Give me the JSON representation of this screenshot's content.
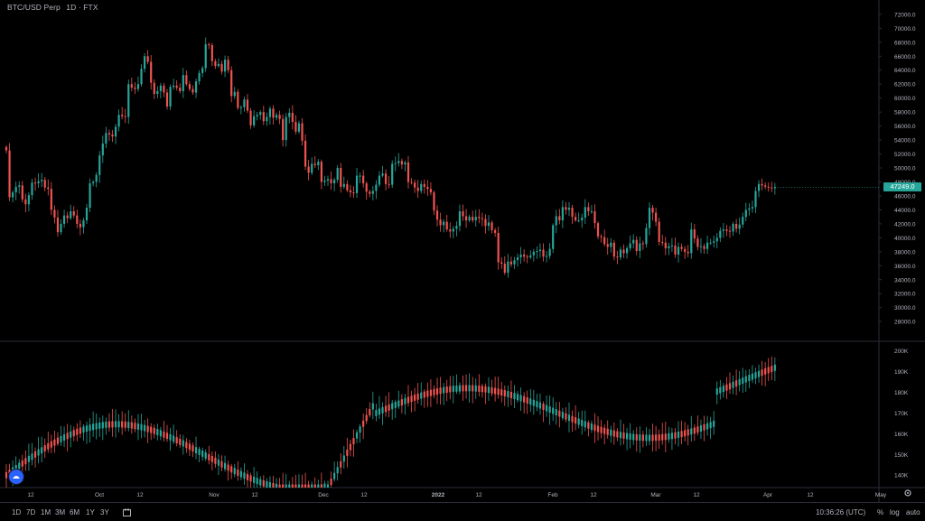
{
  "header": {
    "symbol": "BTC/USD Perp",
    "interval": "1D",
    "exchange": "FTX"
  },
  "colors": {
    "up": "#26a69a",
    "down": "#ef5350",
    "background": "#000000",
    "grid": "#1e222d",
    "axis_text": "#b2b5be"
  },
  "last_price_label": "47249.0",
  "bottom_bar": {
    "ranges": [
      "1D",
      "7D",
      "1M",
      "3M",
      "6M",
      "1Y",
      "3Y"
    ],
    "time": "10:36:26 (UTC)",
    "percent": "%",
    "log": "log",
    "auto": "auto"
  },
  "chart_data": [
    {
      "type": "candlestick",
      "title": "BTC/USD Perp · 1D · FTX",
      "y_ticks": [
        "72000.0",
        "70000.0",
        "68000.0",
        "66000.0",
        "64000.0",
        "62000.0",
        "60000.0",
        "58000.0",
        "56000.0",
        "54000.0",
        "52000.0",
        "50000.0",
        "48000.0",
        "46000.0",
        "44000.0",
        "42000.0",
        "40000.0",
        "38000.0",
        "36000.0",
        "34000.0",
        "32000.0",
        "30000.0",
        "28000.0"
      ],
      "ylim": [
        26600,
        72500
      ],
      "x_ticks": [
        "12",
        "Oct",
        "12",
        "Nov",
        "12",
        "Dec",
        "12",
        "2022",
        "12",
        "Feb",
        "12",
        "Mar",
        "12",
        "Apr",
        "12",
        "May"
      ],
      "closes": [
        52500,
        45800,
        46500,
        47300,
        47500,
        45500,
        44800,
        46100,
        47900,
        47800,
        48100,
        48300,
        47200,
        47000,
        44000,
        42900,
        40800,
        42000,
        43200,
        42800,
        43800,
        43200,
        42000,
        41500,
        42500,
        44300,
        47800,
        48000,
        49000,
        51800,
        53500,
        55000,
        54800,
        54500,
        55900,
        57600,
        57400,
        57300,
        62000,
        61500,
        61300,
        62000,
        64200,
        66000,
        65200,
        62200,
        60600,
        61000,
        61800,
        60800,
        58800,
        61600,
        61800,
        61500,
        61000,
        63300,
        62000,
        61300,
        60800,
        62400,
        63600,
        64300,
        67700,
        67600,
        65300,
        64600,
        64900,
        63800,
        65500,
        64000,
        60300,
        60900,
        58600,
        58700,
        59800,
        58200,
        56100,
        57400,
        57600,
        58000,
        56700,
        57300,
        58500,
        57200,
        57600,
        57000,
        54000,
        57300,
        57900,
        56600,
        55200,
        56400,
        53900,
        50200,
        49300,
        50600,
        50400,
        50900,
        48000,
        48200,
        48400,
        47800,
        48300,
        50000,
        47300,
        47700,
        46800,
        46500,
        46400,
        48900,
        48900,
        47800,
        46600,
        46300,
        46700,
        47600,
        48900,
        49200,
        47700,
        47600,
        50600,
        50700,
        51000,
        50500,
        50800,
        48000,
        47900,
        47200,
        46700,
        47700,
        47300,
        47000,
        46500,
        43900,
        42600,
        41800,
        42300,
        41200,
        40900,
        41300,
        41700,
        43800,
        43100,
        42500,
        43000,
        42500,
        43000,
        42800,
        42700,
        41700,
        42200,
        41100,
        40700,
        36500,
        36300,
        35000,
        36600,
        36200,
        36800,
        37200,
        37600,
        37300,
        37200,
        37500,
        38000,
        38100,
        38300,
        37300,
        37400,
        38400,
        41800,
        43100,
        42500,
        44400,
        44000,
        44300,
        43000,
        42500,
        42500,
        42900,
        44400,
        43800,
        43800,
        42100,
        40200,
        40100,
        39100,
        38700,
        39300,
        37300,
        37200,
        38300,
        37800,
        38500,
        39200,
        39700,
        38100,
        39200,
        39100,
        41400,
        44300,
        43600,
        42300,
        39400,
        39300,
        38500,
        38800,
        38900,
        37600,
        38700,
        38400,
        38000,
        37800,
        41200,
        39900,
        38700,
        38800,
        38400,
        39300,
        39300,
        39500,
        40000,
        41000,
        41200,
        41000,
        40900,
        42000,
        41300,
        41900,
        43000,
        44000,
        44200,
        44400,
        46700,
        47700,
        47500,
        47300,
        47200,
        47100,
        47249
      ],
      "volume_panel": {
        "y_ticks": [
          "200K",
          "190K",
          "180K",
          "170K",
          "160K",
          "150K",
          "140K"
        ],
        "ylim": [
          134000,
          202000
        ]
      }
    }
  ]
}
